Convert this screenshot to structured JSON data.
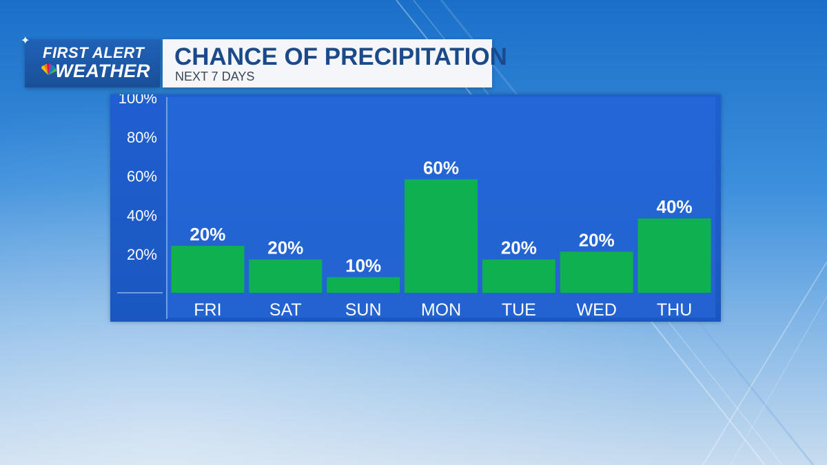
{
  "brand": {
    "line1": "FIRST ALERT",
    "line2": "WEATHER"
  },
  "header": {
    "title": "CHANCE OF PRECIPITATION",
    "subtitle": "NEXT 7 DAYS"
  },
  "colors": {
    "bar": "#0fb04f",
    "panel": "#1f5fd0",
    "axis_line": "#8db4f0",
    "text": "#ffffff",
    "title": "#1b4a8a"
  },
  "chart_data": {
    "type": "bar",
    "categories": [
      "FRI",
      "SAT",
      "SUN",
      "MON",
      "TUE",
      "WED",
      "THU"
    ],
    "values": [
      24,
      17,
      8,
      58,
      17,
      21,
      38
    ],
    "data_labels": [
      "20%",
      "20%",
      "10%",
      "60%",
      "20%",
      "20%",
      "40%"
    ],
    "y_ticks": [
      "20%",
      "40%",
      "60%",
      "80%",
      "100%"
    ],
    "y_tick_values": [
      20,
      40,
      60,
      80,
      100
    ],
    "ylim": [
      0,
      100
    ],
    "title": "CHANCE OF PRECIPITATION",
    "subtitle": "NEXT 7 DAYS",
    "grid": false,
    "legend": "none"
  }
}
